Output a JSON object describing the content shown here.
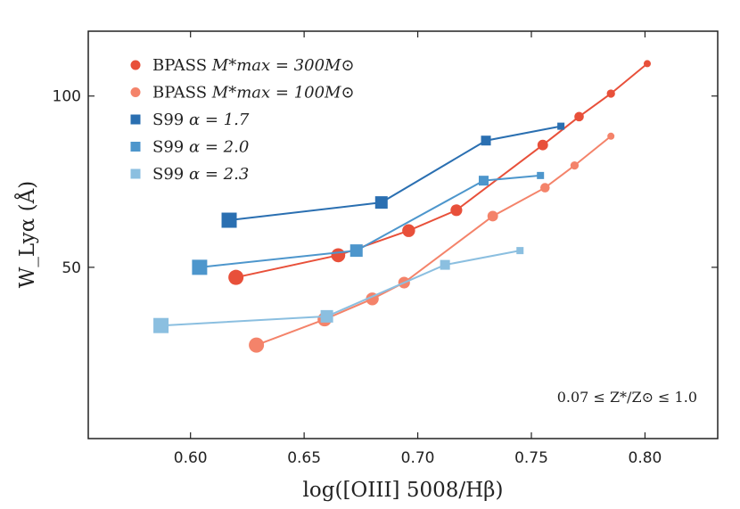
{
  "chart_data": {
    "type": "line",
    "xlabel": "log([OIII] 5008/Hβ)",
    "ylabel": "W_Lyα (Å)",
    "xlim": [
      0.555,
      0.832
    ],
    "ylim": [
      25,
      130
    ],
    "yscale": "log",
    "x_ticks": [
      {
        "value": 0.6,
        "label": "0.60"
      },
      {
        "value": 0.65,
        "label": "0.65"
      },
      {
        "value": 0.7,
        "label": "0.70"
      },
      {
        "value": 0.75,
        "label": "0.75"
      },
      {
        "value": 0.8,
        "label": "0.80"
      }
    ],
    "y_ticks": [
      {
        "value": 50,
        "label": "50"
      },
      {
        "value": 100,
        "label": "100"
      }
    ],
    "legend_placement": "top-left",
    "annotation": "0.07 ≤ Z*/Z⊙ ≤ 1.0",
    "series": [
      {
        "name": "BPASS M*max = 300M⊙",
        "legend_prefix": "BPASS ",
        "legend_math": "M*max = 300M⊙",
        "marker": "circle",
        "color": "#e8503a",
        "x": [
          0.62,
          0.665,
          0.696,
          0.717,
          0.755,
          0.771,
          0.785,
          0.801
        ],
        "y": [
          48,
          52.5,
          58,
          63,
          82,
          92,
          101,
          114
        ]
      },
      {
        "name": "BPASS M*max = 100M⊙",
        "legend_prefix": "BPASS ",
        "legend_math": "M*max = 100M⊙",
        "marker": "circle",
        "color": "#f4836a",
        "x": [
          0.629,
          0.659,
          0.68,
          0.694,
          0.733,
          0.756,
          0.769,
          0.785
        ],
        "y": [
          36.5,
          40.5,
          44,
          47,
          61.5,
          69,
          75.5,
          85
        ]
      },
      {
        "name": "S99 α = 1.7",
        "legend_prefix": "S99 ",
        "legend_math": "α = 1.7",
        "marker": "square",
        "color": "#2a6fb1",
        "x": [
          0.617,
          0.684,
          0.73,
          0.763
        ],
        "y": [
          60.5,
          65,
          83.5,
          88.5
        ]
      },
      {
        "name": "S99 α = 2.0",
        "legend_prefix": "S99 ",
        "legend_math": "α = 2.0",
        "marker": "square",
        "color": "#4d96cc",
        "x": [
          0.604,
          0.673,
          0.729,
          0.754
        ],
        "y": [
          50,
          53.5,
          71,
          72.5
        ]
      },
      {
        "name": "S99 α = 2.3",
        "legend_prefix": "S99 ",
        "legend_math": "α = 2.3",
        "marker": "square",
        "color": "#8bbfe0",
        "x": [
          0.587,
          0.66,
          0.712,
          0.745
        ],
        "y": [
          39.5,
          41,
          50.5,
          53.5
        ]
      }
    ]
  }
}
